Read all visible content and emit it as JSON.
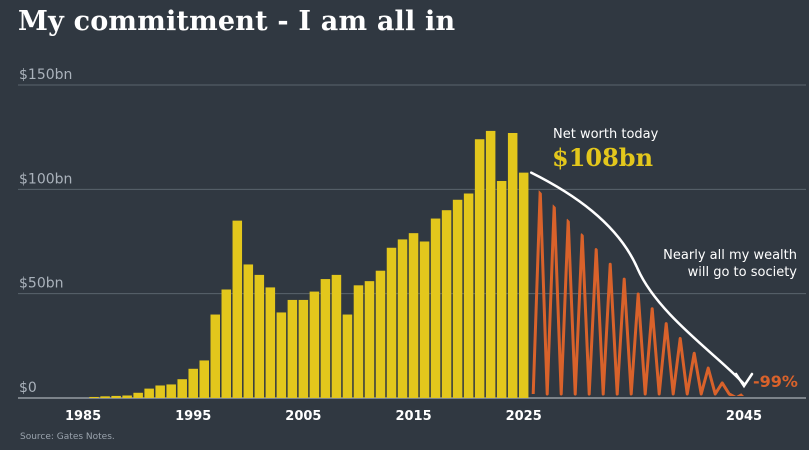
{
  "title": "My commitment - I am all in",
  "source": "Source: Gates Notes.",
  "colors": {
    "background": "#303841",
    "bar": "#e3c71c",
    "projection": "#d9622b",
    "grid": "#5a636d",
    "axis_text": "#aab2bb",
    "annotation": "#ffffff"
  },
  "chart_data": {
    "type": "bar",
    "title": "My commitment - I am all in",
    "xlabel": "",
    "ylabel": "",
    "ylim": [
      0,
      150
    ],
    "xlim": [
      1980,
      2047
    ],
    "grid": true,
    "y_ticks": [
      {
        "value": 0,
        "label": "$0"
      },
      {
        "value": 50,
        "label": "$50bn"
      },
      {
        "value": 100,
        "label": "$100bn"
      },
      {
        "value": 150,
        "label": "$150bn"
      }
    ],
    "x_ticks": [
      {
        "value": 1985,
        "label": "1985"
      },
      {
        "value": 1995,
        "label": "1995"
      },
      {
        "value": 2005,
        "label": "2005"
      },
      {
        "value": 2015,
        "label": "2015"
      },
      {
        "value": 2025,
        "label": "2025"
      },
      {
        "value": 2045,
        "label": "2045"
      }
    ],
    "series": [
      {
        "name": "Net worth",
        "x": [
          1986,
          1987,
          1988,
          1989,
          1990,
          1991,
          1992,
          1993,
          1994,
          1995,
          1996,
          1997,
          1998,
          1999,
          2000,
          2001,
          2002,
          2003,
          2004,
          2005,
          2006,
          2007,
          2008,
          2009,
          2010,
          2011,
          2012,
          2013,
          2014,
          2015,
          2016,
          2017,
          2018,
          2019,
          2020,
          2021,
          2022,
          2023,
          2024,
          2025
        ],
        "values": [
          0.5,
          0.8,
          1,
          1.2,
          2.5,
          4.5,
          6,
          6.5,
          9,
          14,
          18,
          40,
          52,
          85,
          64,
          59,
          53,
          41,
          47,
          47,
          51,
          57,
          59,
          40,
          54,
          56,
          61,
          72,
          76,
          79,
          75,
          86,
          90,
          95,
          98,
          124,
          128,
          104,
          127,
          108
        ]
      }
    ],
    "projection": {
      "name": "Nearly all my wealth will go to society",
      "from": {
        "x": 2025,
        "y": 108
      },
      "to": {
        "x": 2045,
        "y": 0
      }
    },
    "annotations": {
      "net_worth_label": "Net worth today",
      "net_worth_value": "$108bn",
      "society_line1": "Nearly all my wealth",
      "society_line2": "will go to society",
      "reduction": "-99%"
    }
  }
}
